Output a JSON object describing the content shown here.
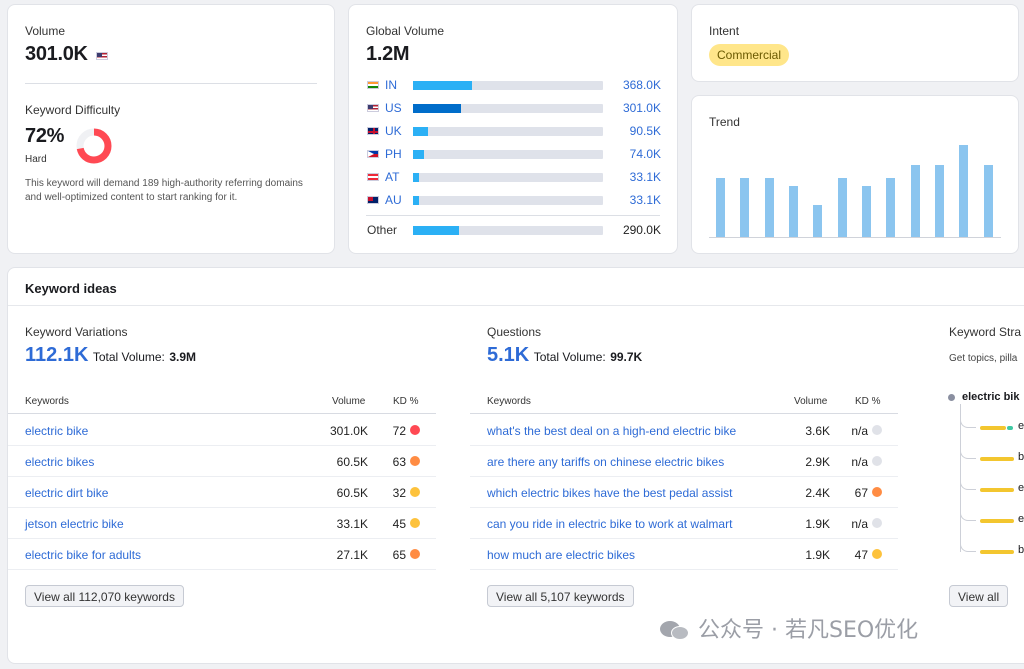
{
  "volume": {
    "label": "Volume",
    "value": "301.0K"
  },
  "keyword_difficulty": {
    "label": "Keyword Difficulty",
    "value": "72%",
    "level": "Hard",
    "percent": 72,
    "description": "This keyword will demand 189 high-authority referring domains and well-optimized content to start ranking for it.",
    "color": "#ff4953"
  },
  "global_volume": {
    "label": "Global Volume",
    "value": "1.2M",
    "countries": [
      {
        "code": "IN",
        "flag": "flag-in",
        "value": "368.0K",
        "fill": 0.31,
        "color": "#2bb0f5"
      },
      {
        "code": "US",
        "flag": "flag-us",
        "value": "301.0K",
        "fill": 0.25,
        "color": "#006dca"
      },
      {
        "code": "UK",
        "flag": "flag-uk",
        "value": "90.5K",
        "fill": 0.08,
        "color": "#2bb0f5"
      },
      {
        "code": "PH",
        "flag": "flag-ph",
        "value": "74.0K",
        "fill": 0.06,
        "color": "#2bb0f5"
      },
      {
        "code": "AT",
        "flag": "flag-at",
        "value": "33.1K",
        "fill": 0.03,
        "color": "#2bb0f5"
      },
      {
        "code": "AU",
        "flag": "flag-au",
        "value": "33.1K",
        "fill": 0.03,
        "color": "#2bb0f5"
      }
    ],
    "other": {
      "label": "Other",
      "value": "290.0K",
      "fill": 0.24
    }
  },
  "intent": {
    "label": "Intent",
    "value": "Commercial"
  },
  "trend": {
    "label": "Trend",
    "values": [
      0.64,
      0.64,
      0.64,
      0.55,
      0.35,
      0.64,
      0.55,
      0.64,
      0.78,
      0.78,
      1.0,
      0.78
    ]
  },
  "keyword_ideas": {
    "title": "Keyword ideas",
    "variations": {
      "label": "Keyword Variations",
      "count": "112.1K",
      "total_label": "Total Volume:",
      "total": "3.9M",
      "headers": {
        "kw": "Keywords",
        "vol": "Volume",
        "kd": "KD %"
      },
      "rows": [
        {
          "kw": "electric bike",
          "vol": "301.0K",
          "kd": "72",
          "color": "#ff4953"
        },
        {
          "kw": "electric bikes",
          "vol": "60.5K",
          "kd": "63",
          "color": "#ff8c43"
        },
        {
          "kw": "electric dirt bike",
          "vol": "60.5K",
          "kd": "32",
          "color": "#fdc23c"
        },
        {
          "kw": "jetson electric bike",
          "vol": "33.1K",
          "kd": "45",
          "color": "#fdc23c"
        },
        {
          "kw": "electric bike for adults",
          "vol": "27.1K",
          "kd": "65",
          "color": "#ff8c43"
        }
      ],
      "button": "View all 112,070 keywords"
    },
    "questions": {
      "label": "Questions",
      "count": "5.1K",
      "total_label": "Total Volume:",
      "total": "99.7K",
      "headers": {
        "kw": "Keywords",
        "vol": "Volume",
        "kd": "KD %"
      },
      "rows": [
        {
          "kw": "what's the best deal on a high-end electric bike",
          "vol": "3.6K",
          "kd": "n/a",
          "color": "#e0e2e8"
        },
        {
          "kw": "are there any tariffs on chinese electric bikes",
          "vol": "2.9K",
          "kd": "n/a",
          "color": "#e0e2e8"
        },
        {
          "kw": "which electric bikes have the best pedal assist",
          "vol": "2.4K",
          "kd": "67",
          "color": "#ff8c43"
        },
        {
          "kw": "can you ride in electric bike to work at walmart",
          "vol": "1.9K",
          "kd": "n/a",
          "color": "#e0e2e8"
        },
        {
          "kw": "how much are electric bikes",
          "vol": "1.9K",
          "kd": "47",
          "color": "#fdc23c"
        }
      ],
      "button": "View all 5,107 keywords"
    },
    "strategy": {
      "label": "Keyword Stra",
      "subtitle": "Get topics, pilla",
      "root": "electric bik",
      "branches": [
        "e",
        "b",
        "e",
        "e",
        "b"
      ],
      "button": "View all"
    }
  },
  "watermark": "公众号 · 若凡SEO优化"
}
